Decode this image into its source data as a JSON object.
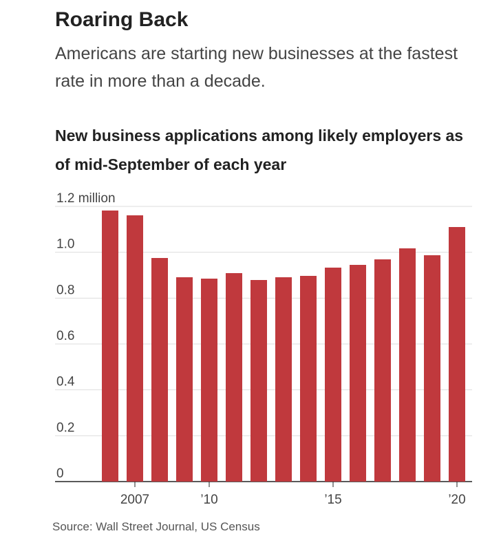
{
  "chart_data": {
    "type": "bar",
    "title": "Roaring Back",
    "subtitle": "Americans are starting new businesses at the fastest rate in more than a decade.",
    "chart_title": "New business applications among likely employers as of mid-September of each year",
    "source": "Source: Wall Street Journal, US Census",
    "categories": [
      null,
      "2007",
      null,
      null,
      "’10",
      null,
      null,
      null,
      null,
      "’15",
      null,
      null,
      null,
      null,
      "’20"
    ],
    "values": [
      1.182,
      1.161,
      0.975,
      0.891,
      0.885,
      0.909,
      0.879,
      0.891,
      0.897,
      0.933,
      0.945,
      0.969,
      1.017,
      0.987,
      1.11
    ],
    "color": "#c0393d",
    "ylim": [
      0,
      1.2
    ],
    "yticks": [
      0,
      0.2,
      0.4,
      0.6,
      0.8,
      {
        "value": 1,
        "label": "1.0"
      },
      {
        "value": 1.2,
        "label": "1.2 million"
      }
    ],
    "grid": true
  }
}
